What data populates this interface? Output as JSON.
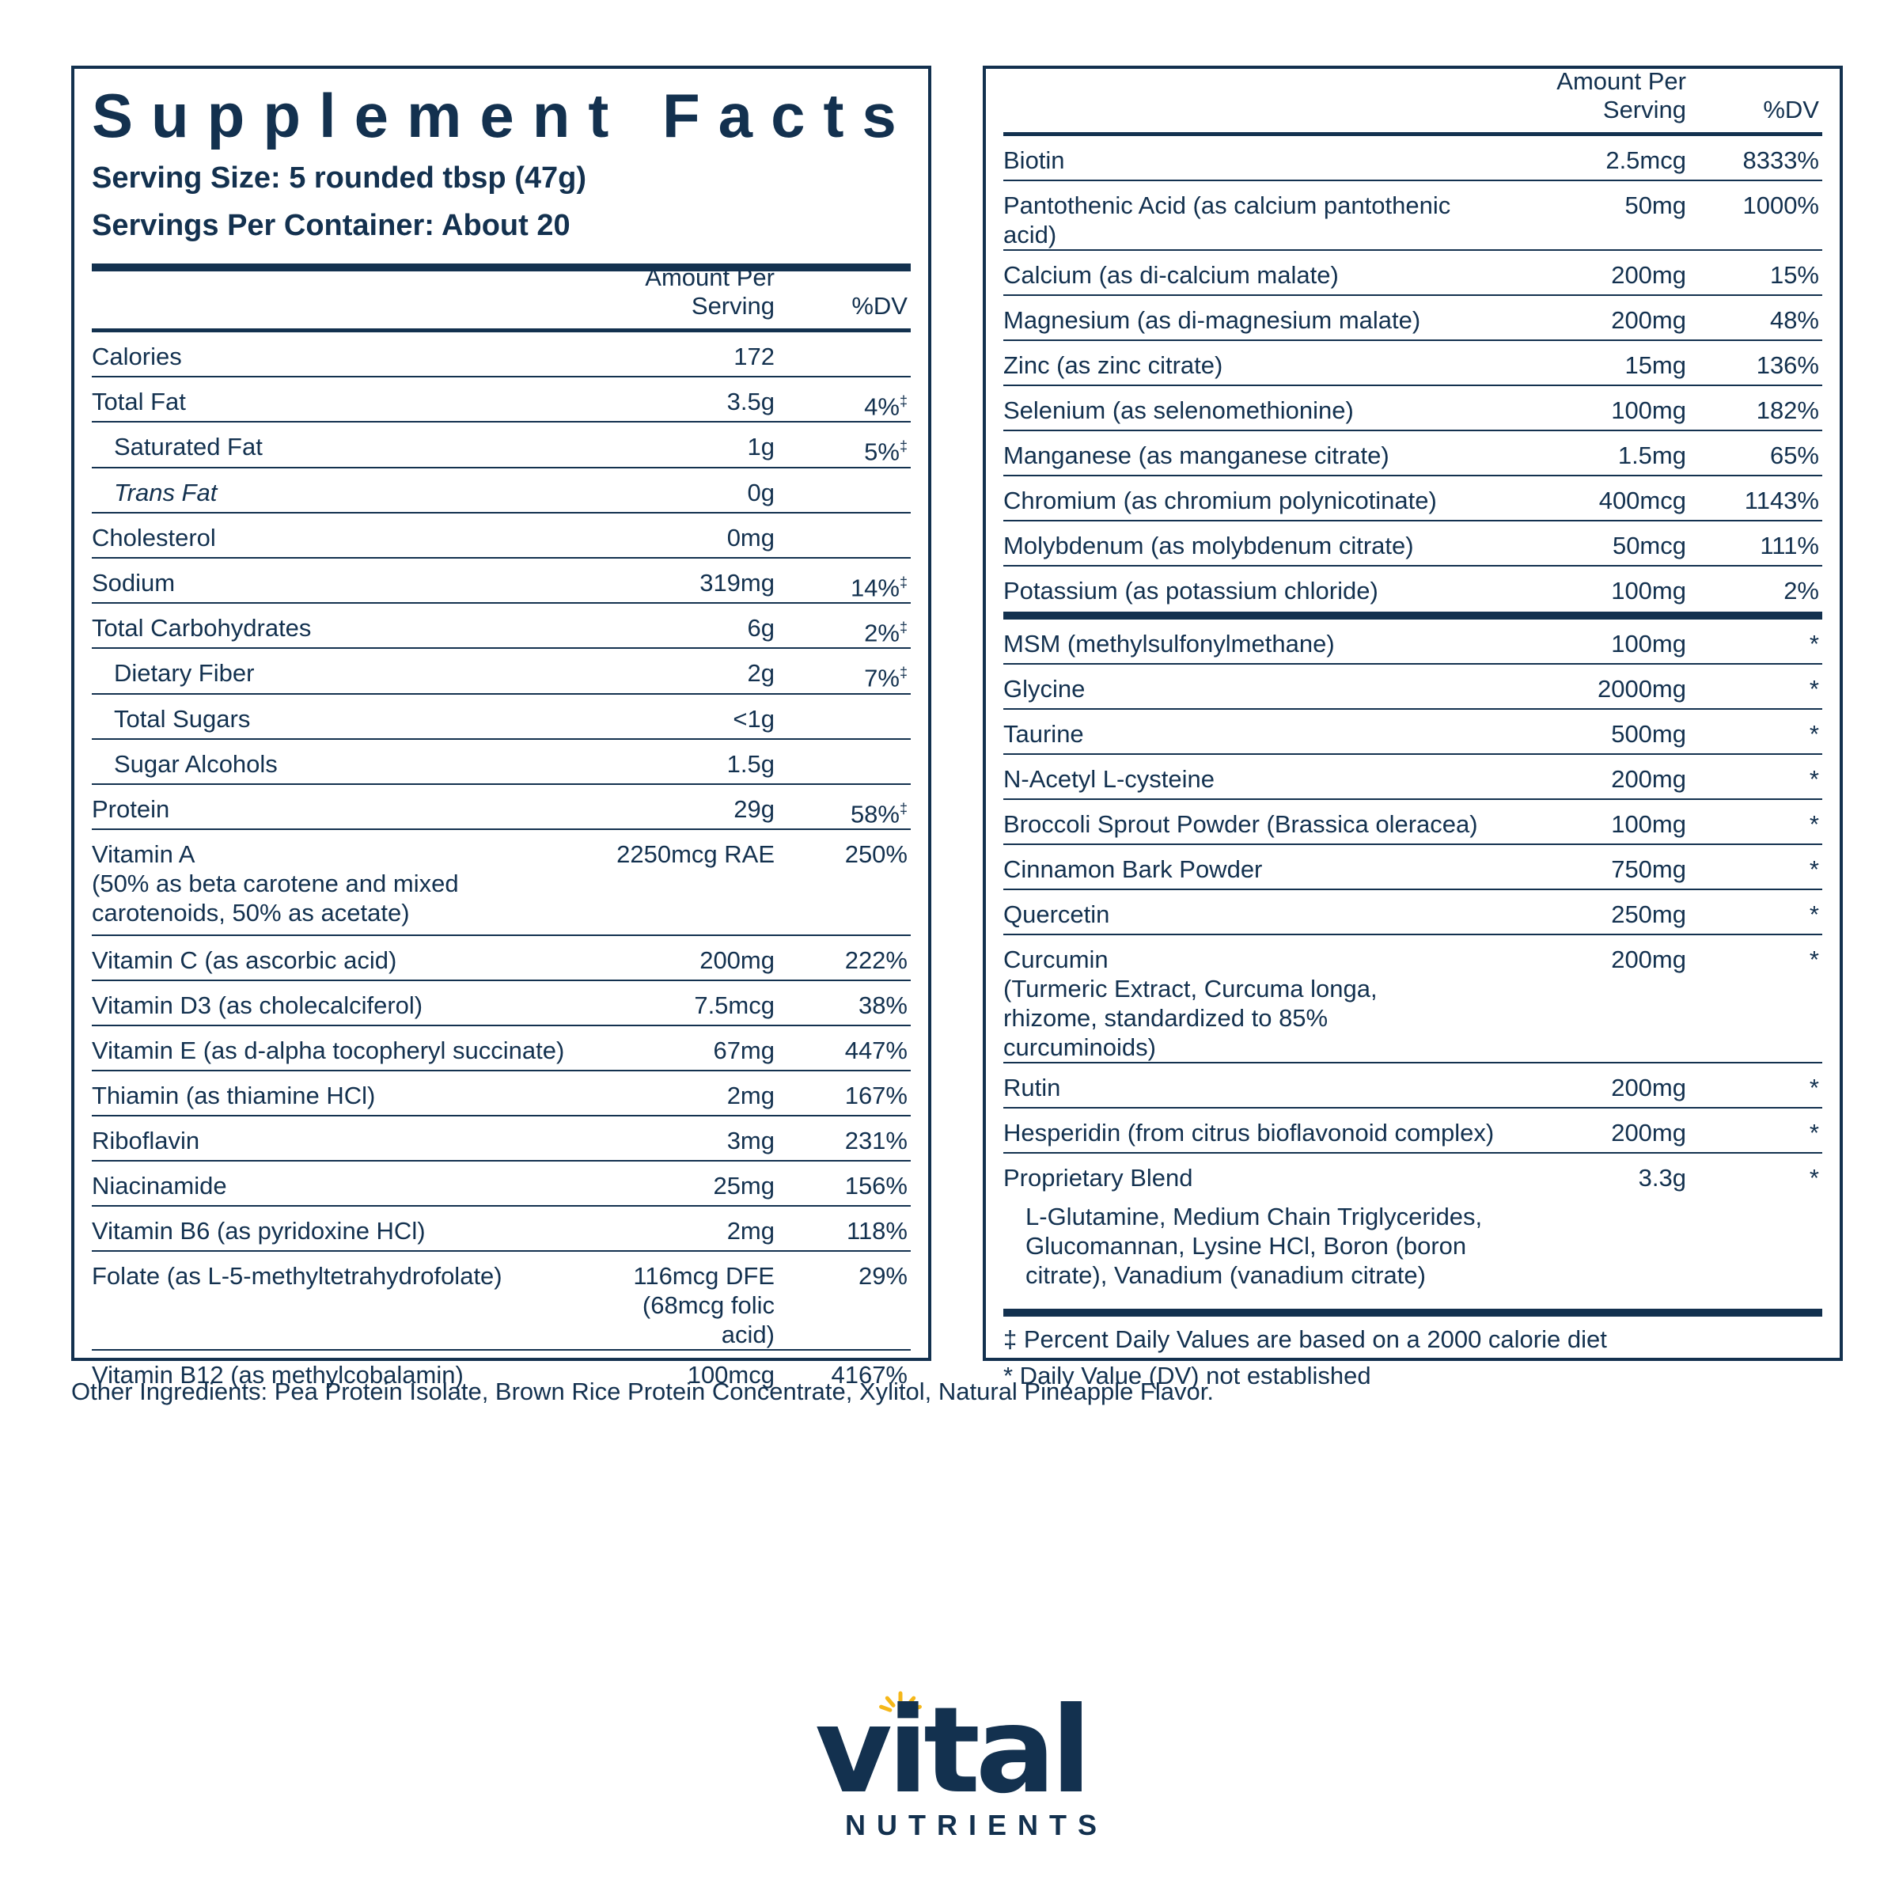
{
  "title": "Supplement Facts",
  "serving_size": "Serving Size: 5 rounded tbsp (47g)",
  "servings_per_container": "Servings Per Container: About 20",
  "header": {
    "amount": "Amount Per Serving",
    "dv": "%DV"
  },
  "left_rows": [
    {
      "name": "Calories",
      "amount": "172",
      "dv": "",
      "mark": ""
    },
    {
      "name": "Total Fat",
      "amount": "3.5g",
      "dv": "4%",
      "mark": "‡"
    },
    {
      "name": "Saturated Fat",
      "amount": "1g",
      "dv": "5%",
      "mark": "‡"
    },
    {
      "name": "Trans Fat",
      "amount": "0g",
      "dv": "",
      "mark": ""
    },
    {
      "name": "Cholesterol",
      "amount": "0mg",
      "dv": "",
      "mark": ""
    },
    {
      "name": "Sodium",
      "amount": "319mg",
      "dv": "14%",
      "mark": "‡"
    },
    {
      "name": "Total Carbohydrates",
      "amount": "6g",
      "dv": "2%",
      "mark": "‡"
    },
    {
      "name": "Dietary Fiber",
      "amount": "2g",
      "dv": "7%",
      "mark": "‡"
    },
    {
      "name": "Total Sugars",
      "amount": "<1g",
      "dv": "",
      "mark": ""
    },
    {
      "name": "Sugar Alcohols",
      "amount": "1.5g",
      "dv": "",
      "mark": ""
    },
    {
      "name": "Protein",
      "amount": "29g",
      "dv": "58%",
      "mark": "‡"
    },
    {
      "name": "Vitamin A",
      "sub": "(50% as beta carotene and mixed carotenoids, 50% as acetate)",
      "amount": "2250mcg RAE",
      "dv": "250%",
      "mark": ""
    },
    {
      "name": "Vitamin C (as ascorbic acid)",
      "amount": "200mg",
      "dv": "222%",
      "mark": ""
    },
    {
      "name": "Vitamin D3 (as cholecalciferol)",
      "amount": "7.5mcg",
      "dv": "38%",
      "mark": ""
    },
    {
      "name": "Vitamin E (as d-alpha tocopheryl succinate)",
      "amount": "67mg",
      "dv": "447%",
      "mark": ""
    },
    {
      "name": "Thiamin (as thiamine HCl)",
      "amount": "2mg",
      "dv": "167%",
      "mark": ""
    },
    {
      "name": "Riboflavin",
      "amount": "3mg",
      "dv": "231%",
      "mark": ""
    },
    {
      "name": "Niacinamide",
      "amount": "25mg",
      "dv": "156%",
      "mark": ""
    },
    {
      "name": "Vitamin B6 (as pyridoxine HCl)",
      "amount": "2mg",
      "dv": "118%",
      "mark": ""
    },
    {
      "name": "Folate (as L-5-methyltetrahydrofolate)",
      "amount": "116mcg DFE",
      "amount_sub": "(68mcg folic acid)",
      "dv": "29%",
      "mark": ""
    },
    {
      "name": "Vitamin B12 (as methylcobalamin)",
      "amount": "100mcg",
      "dv": "4167%",
      "mark": ""
    }
  ],
  "right_rows_a": [
    {
      "name": "Biotin",
      "amount": "2.5mcg",
      "dv": "8333%"
    },
    {
      "name": "Pantothenic Acid (as calcium pantothenic acid)",
      "amount": "50mg",
      "dv": "1000%"
    },
    {
      "name": "Calcium (as di-calcium malate)",
      "amount": "200mg",
      "dv": "15%"
    },
    {
      "name": "Magnesium (as di-magnesium malate)",
      "amount": "200mg",
      "dv": "48%"
    },
    {
      "name": "Zinc (as zinc citrate)",
      "amount": "15mg",
      "dv": "136%"
    },
    {
      "name": "Selenium (as selenomethionine)",
      "amount": "100mg",
      "dv": "182%"
    },
    {
      "name": "Manganese (as manganese citrate)",
      "amount": "1.5mg",
      "dv": "65%"
    },
    {
      "name": "Chromium (as chromium polynicotinate)",
      "amount": "400mcg",
      "dv": "1143%"
    },
    {
      "name": "Molybdenum (as molybdenum citrate)",
      "amount": "50mcg",
      "dv": "111%"
    },
    {
      "name": "Potassium (as potassium chloride)",
      "amount": "100mg",
      "dv": "2%"
    }
  ],
  "right_rows_b": [
    {
      "name": "MSM (methylsulfonylmethane)",
      "amount": "100mg",
      "dv": "*"
    },
    {
      "name": "Glycine",
      "amount": "2000mg",
      "dv": "*"
    },
    {
      "name": "Taurine",
      "amount": "500mg",
      "dv": "*"
    },
    {
      "name": "N-Acetyl L-cysteine",
      "amount": "200mg",
      "dv": "*"
    },
    {
      "name": "Broccoli Sprout Powder (Brassica oleracea)",
      "amount": "100mg",
      "dv": "*"
    },
    {
      "name": "Cinnamon Bark Powder",
      "amount": "750mg",
      "dv": "*"
    },
    {
      "name": "Quercetin",
      "amount": "250mg",
      "dv": "*"
    },
    {
      "name": "Curcumin",
      "sub": "(Turmeric Extract, Curcuma longa, rhizome, standardized to 85% curcuminoids)",
      "amount": "200mg",
      "dv": "*"
    },
    {
      "name": "Rutin",
      "amount": "200mg",
      "dv": "*"
    },
    {
      "name": "Hesperidin (from citrus bioflavonoid complex)",
      "amount": "200mg",
      "dv": "*"
    },
    {
      "name": "Proprietary Blend",
      "sub": "L-Glutamine, Medium Chain Triglycerides, Glucomannan, Lysine HCl, Boron (boron citrate), Vanadium (vanadium citrate)",
      "amount": "3.3g",
      "dv": "*"
    }
  ],
  "footnotes": [
    "‡ Percent Daily Values are based on a 2000 calorie diet",
    "* Daily Value (DV) not established"
  ],
  "other_ingredients": "Other Ingredients: Pea Protein Isolate, Brown Rice Protein Concentrate, Xylitol, Natural Pineapple Flavor.",
  "brand": {
    "word": "vital",
    "sub": "NUTRIENTS",
    "sun_color": "#f5b719",
    "navy": "#13314f"
  }
}
